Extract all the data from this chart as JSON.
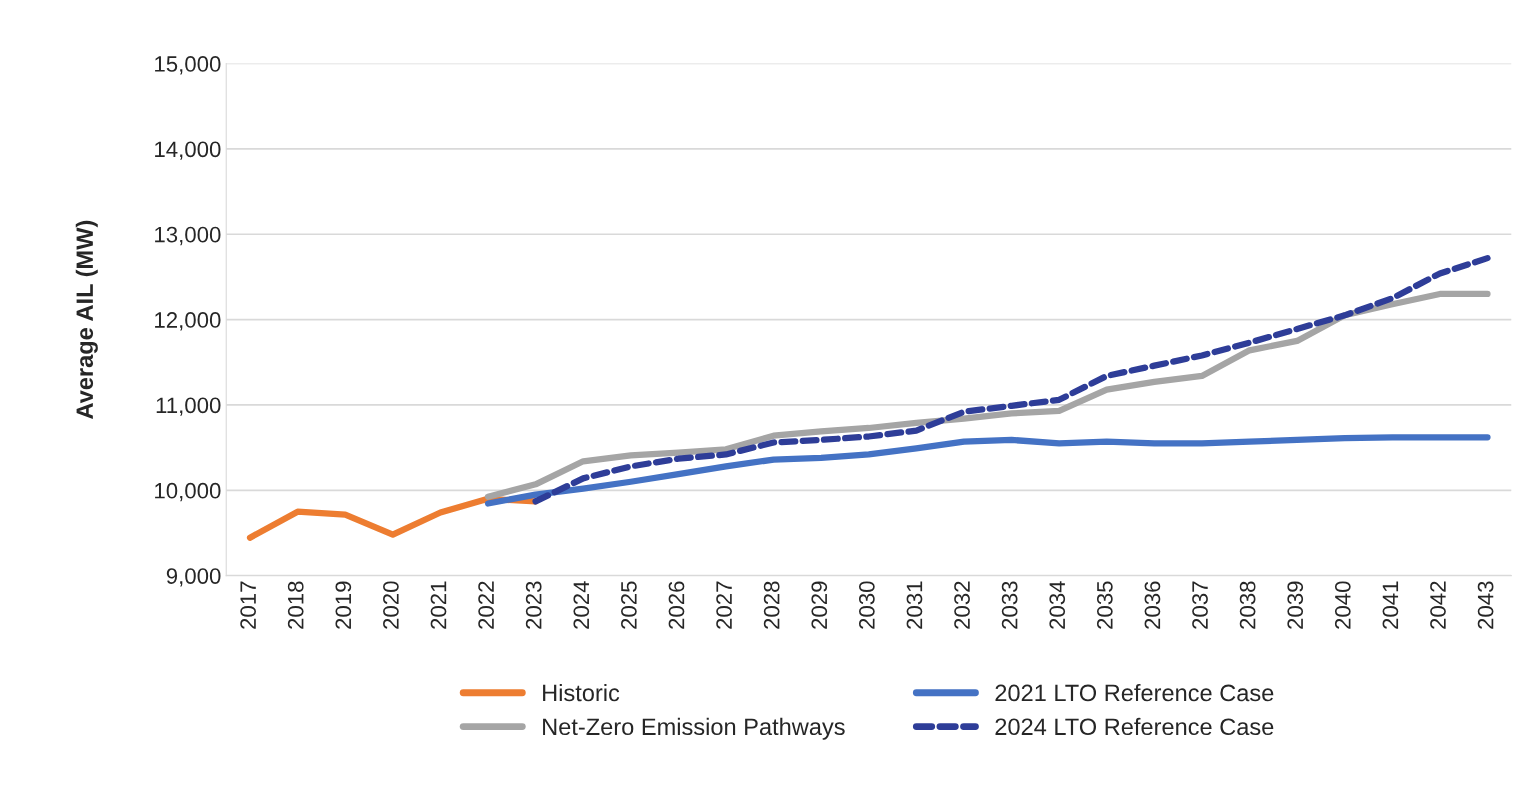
{
  "chart_data": {
    "type": "line",
    "ylabel": "Average AIL (MW)",
    "categories": [
      "2017",
      "2018",
      "2019",
      "2020",
      "2021",
      "2022",
      "2023",
      "2024",
      "2025",
      "2026",
      "2027",
      "2028",
      "2029",
      "2030",
      "2031",
      "2032",
      "2033",
      "2034",
      "2035",
      "2036",
      "2037",
      "2038",
      "2039",
      "2040",
      "2041",
      "2042",
      "2043"
    ],
    "series": [
      {
        "name": "Historic",
        "color": "#ed7d31",
        "line_style": "solid",
        "values": [
          9445,
          9750,
          9715,
          9480,
          9740,
          9900,
          9870,
          null,
          null,
          null,
          null,
          null,
          null,
          null,
          null,
          null,
          null,
          null,
          null,
          null,
          null,
          null,
          null,
          null,
          null,
          null,
          null
        ]
      },
      {
        "name": "2021 LTO Reference Case",
        "color": "#4472c4",
        "line_style": "solid",
        "values": [
          null,
          null,
          null,
          null,
          null,
          9845,
          9950,
          10020,
          10100,
          10190,
          10280,
          10360,
          10380,
          10420,
          10490,
          10570,
          10590,
          10550,
          10570,
          10550,
          10550,
          10570,
          10590,
          10610,
          10620,
          10620,
          10620
        ]
      },
      {
        "name": "Net-Zero Emission Pathways",
        "color": "#a5a5a5",
        "line_style": "solid",
        "values": [
          null,
          null,
          null,
          null,
          null,
          9925,
          10070,
          10340,
          10410,
          10440,
          10480,
          10640,
          10690,
          10730,
          10790,
          10840,
          10900,
          10930,
          11180,
          11270,
          11340,
          11640,
          11750,
          12050,
          12180,
          12300,
          12300
        ]
      },
      {
        "name": "2024 LTO Reference Case",
        "color": "#2e3d98",
        "line_style": "dashed",
        "values": [
          null,
          null,
          null,
          null,
          null,
          null,
          9870,
          10140,
          10280,
          10370,
          10420,
          10560,
          10590,
          10630,
          10700,
          10920,
          10990,
          11060,
          11340,
          11460,
          11580,
          11730,
          11890,
          12050,
          12250,
          12540,
          12720
        ]
      }
    ],
    "ylim": [
      9000,
      15000
    ],
    "yticks": [
      {
        "value": 9000,
        "label": "9,000"
      },
      {
        "value": 10000,
        "label": "10,000"
      },
      {
        "value": 11000,
        "label": "11,000"
      },
      {
        "value": 12000,
        "label": "12,000"
      },
      {
        "value": 13000,
        "label": "13,000"
      },
      {
        "value": 14000,
        "label": "14,000"
      },
      {
        "value": 15000,
        "label": "15,000"
      }
    ],
    "grid": "y",
    "legend": "bottom",
    "marker": "none"
  }
}
